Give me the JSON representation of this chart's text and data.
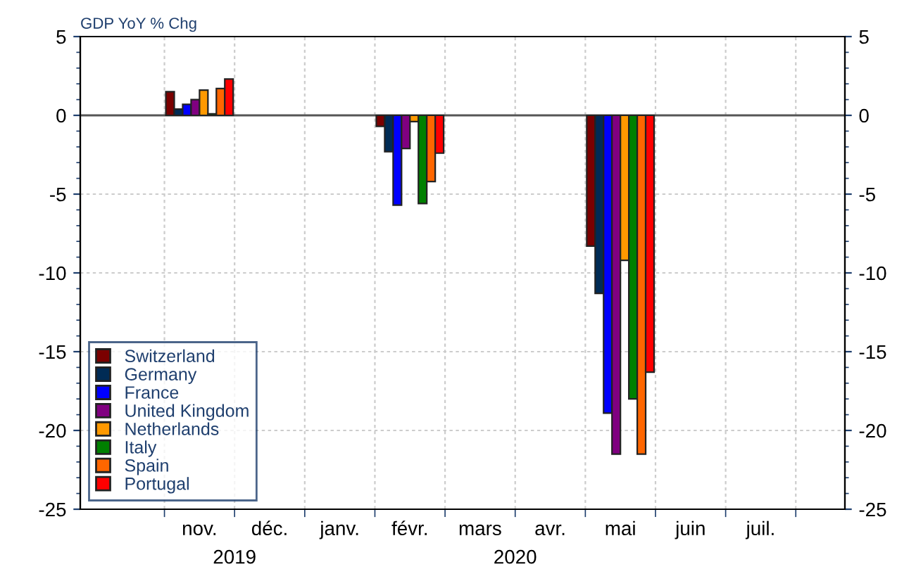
{
  "chart_data": {
    "type": "bar",
    "title": "GDP YoY % Chg",
    "categories": [
      "nov.",
      "déc.",
      "janv.",
      "févr.",
      "mars",
      "avr.",
      "mai",
      "juin",
      "juil."
    ],
    "series": [
      {
        "name": "Switzerland",
        "color": "#7b0000",
        "values": [
          1.5,
          null,
          null,
          -0.7,
          null,
          null,
          -8.3,
          null,
          null
        ]
      },
      {
        "name": "Germany",
        "color": "#002b55",
        "values": [
          0.4,
          null,
          null,
          -2.3,
          null,
          null,
          -11.3,
          null,
          null
        ]
      },
      {
        "name": "France",
        "color": "#0000ff",
        "values": [
          0.7,
          null,
          null,
          -5.7,
          null,
          null,
          -18.9,
          null,
          null
        ]
      },
      {
        "name": "United Kingdom",
        "color": "#800080",
        "values": [
          1.0,
          null,
          null,
          -2.1,
          null,
          null,
          -21.5,
          null,
          null
        ]
      },
      {
        "name": "Netherlands",
        "color": "#ff9900",
        "values": [
          1.6,
          null,
          null,
          -0.4,
          null,
          null,
          -9.2,
          null,
          null
        ]
      },
      {
        "name": "Italy",
        "color": "#008000",
        "values": [
          0.1,
          null,
          null,
          -5.6,
          null,
          null,
          -18.0,
          null,
          null
        ]
      },
      {
        "name": "Spain",
        "color": "#ff6600",
        "values": [
          1.7,
          null,
          null,
          -4.2,
          null,
          null,
          -21.5,
          null,
          null
        ]
      },
      {
        "name": "Portugal",
        "color": "#ff0000",
        "values": [
          2.3,
          null,
          null,
          -2.4,
          null,
          null,
          -16.3,
          null,
          null
        ]
      }
    ],
    "ylim": [
      -25,
      5
    ],
    "yticks": [
      5,
      0,
      -5,
      -10,
      -15,
      -20,
      -25
    ],
    "y2lim": [
      -25,
      5
    ],
    "y2ticks": [
      5,
      0,
      -5,
      -10,
      -15,
      -20,
      -25
    ],
    "annotations": [
      "2019",
      "2020"
    ],
    "grid": true,
    "legend": "bottom left"
  }
}
